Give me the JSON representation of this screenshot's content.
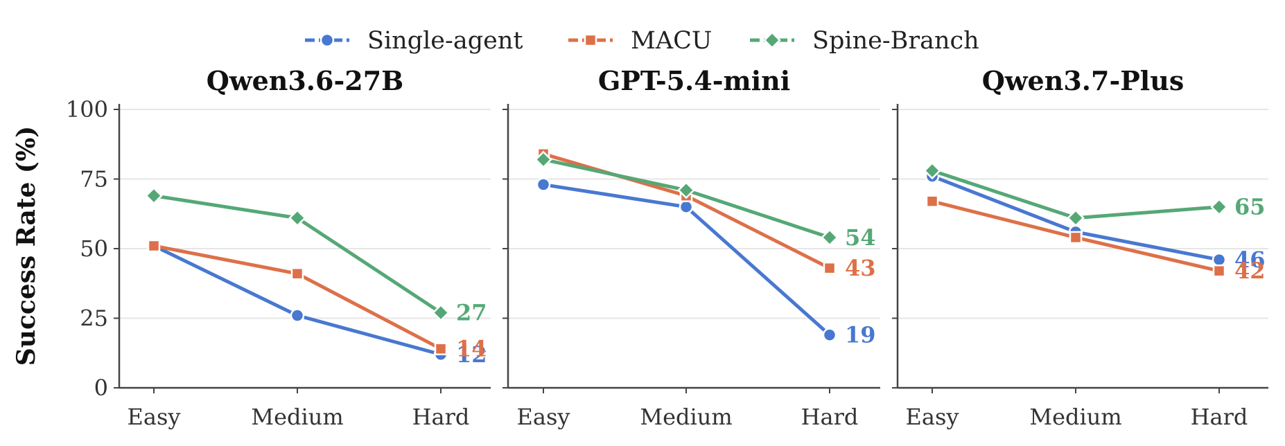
{
  "chart_data": {
    "type": "line",
    "ylabel": "Success Rate (%)",
    "ylim": [
      0,
      100
    ],
    "yticks": [
      "0",
      "25",
      "50",
      "75",
      "100"
    ],
    "categories": [
      "Easy",
      "Medium",
      "Hard"
    ],
    "grid": "horizontal",
    "legend_position": "top-center",
    "legend": [
      {
        "name": "Single-agent",
        "color": "#4878d0",
        "marker": "circle"
      },
      {
        "name": "MACU",
        "color": "#dd7049",
        "marker": "square"
      },
      {
        "name": "Spine-Branch",
        "color": "#55a876",
        "marker": "diamond"
      }
    ],
    "panels": [
      {
        "title": "Qwen3.6-27B",
        "series": [
          {
            "name": "Single-agent",
            "values": [
              51,
              26,
              12
            ],
            "end_label": "12"
          },
          {
            "name": "MACU",
            "values": [
              51,
              41,
              14
            ],
            "end_label": "14"
          },
          {
            "name": "Spine-Branch",
            "values": [
              69,
              61,
              27
            ],
            "end_label": "27"
          }
        ]
      },
      {
        "title": "GPT-5.4-mini",
        "series": [
          {
            "name": "Single-agent",
            "values": [
              73,
              65,
              19
            ],
            "end_label": "19"
          },
          {
            "name": "MACU",
            "values": [
              84,
              69,
              43
            ],
            "end_label": "43"
          },
          {
            "name": "Spine-Branch",
            "values": [
              82,
              71,
              54
            ],
            "end_label": "54"
          }
        ]
      },
      {
        "title": "Qwen3.7-Plus",
        "series": [
          {
            "name": "Single-agent",
            "values": [
              76,
              56,
              46
            ],
            "end_label": "46"
          },
          {
            "name": "MACU",
            "values": [
              67,
              54,
              42
            ],
            "end_label": "42"
          },
          {
            "name": "Spine-Branch",
            "values": [
              78,
              61,
              65
            ],
            "end_label": "65"
          }
        ]
      }
    ]
  }
}
